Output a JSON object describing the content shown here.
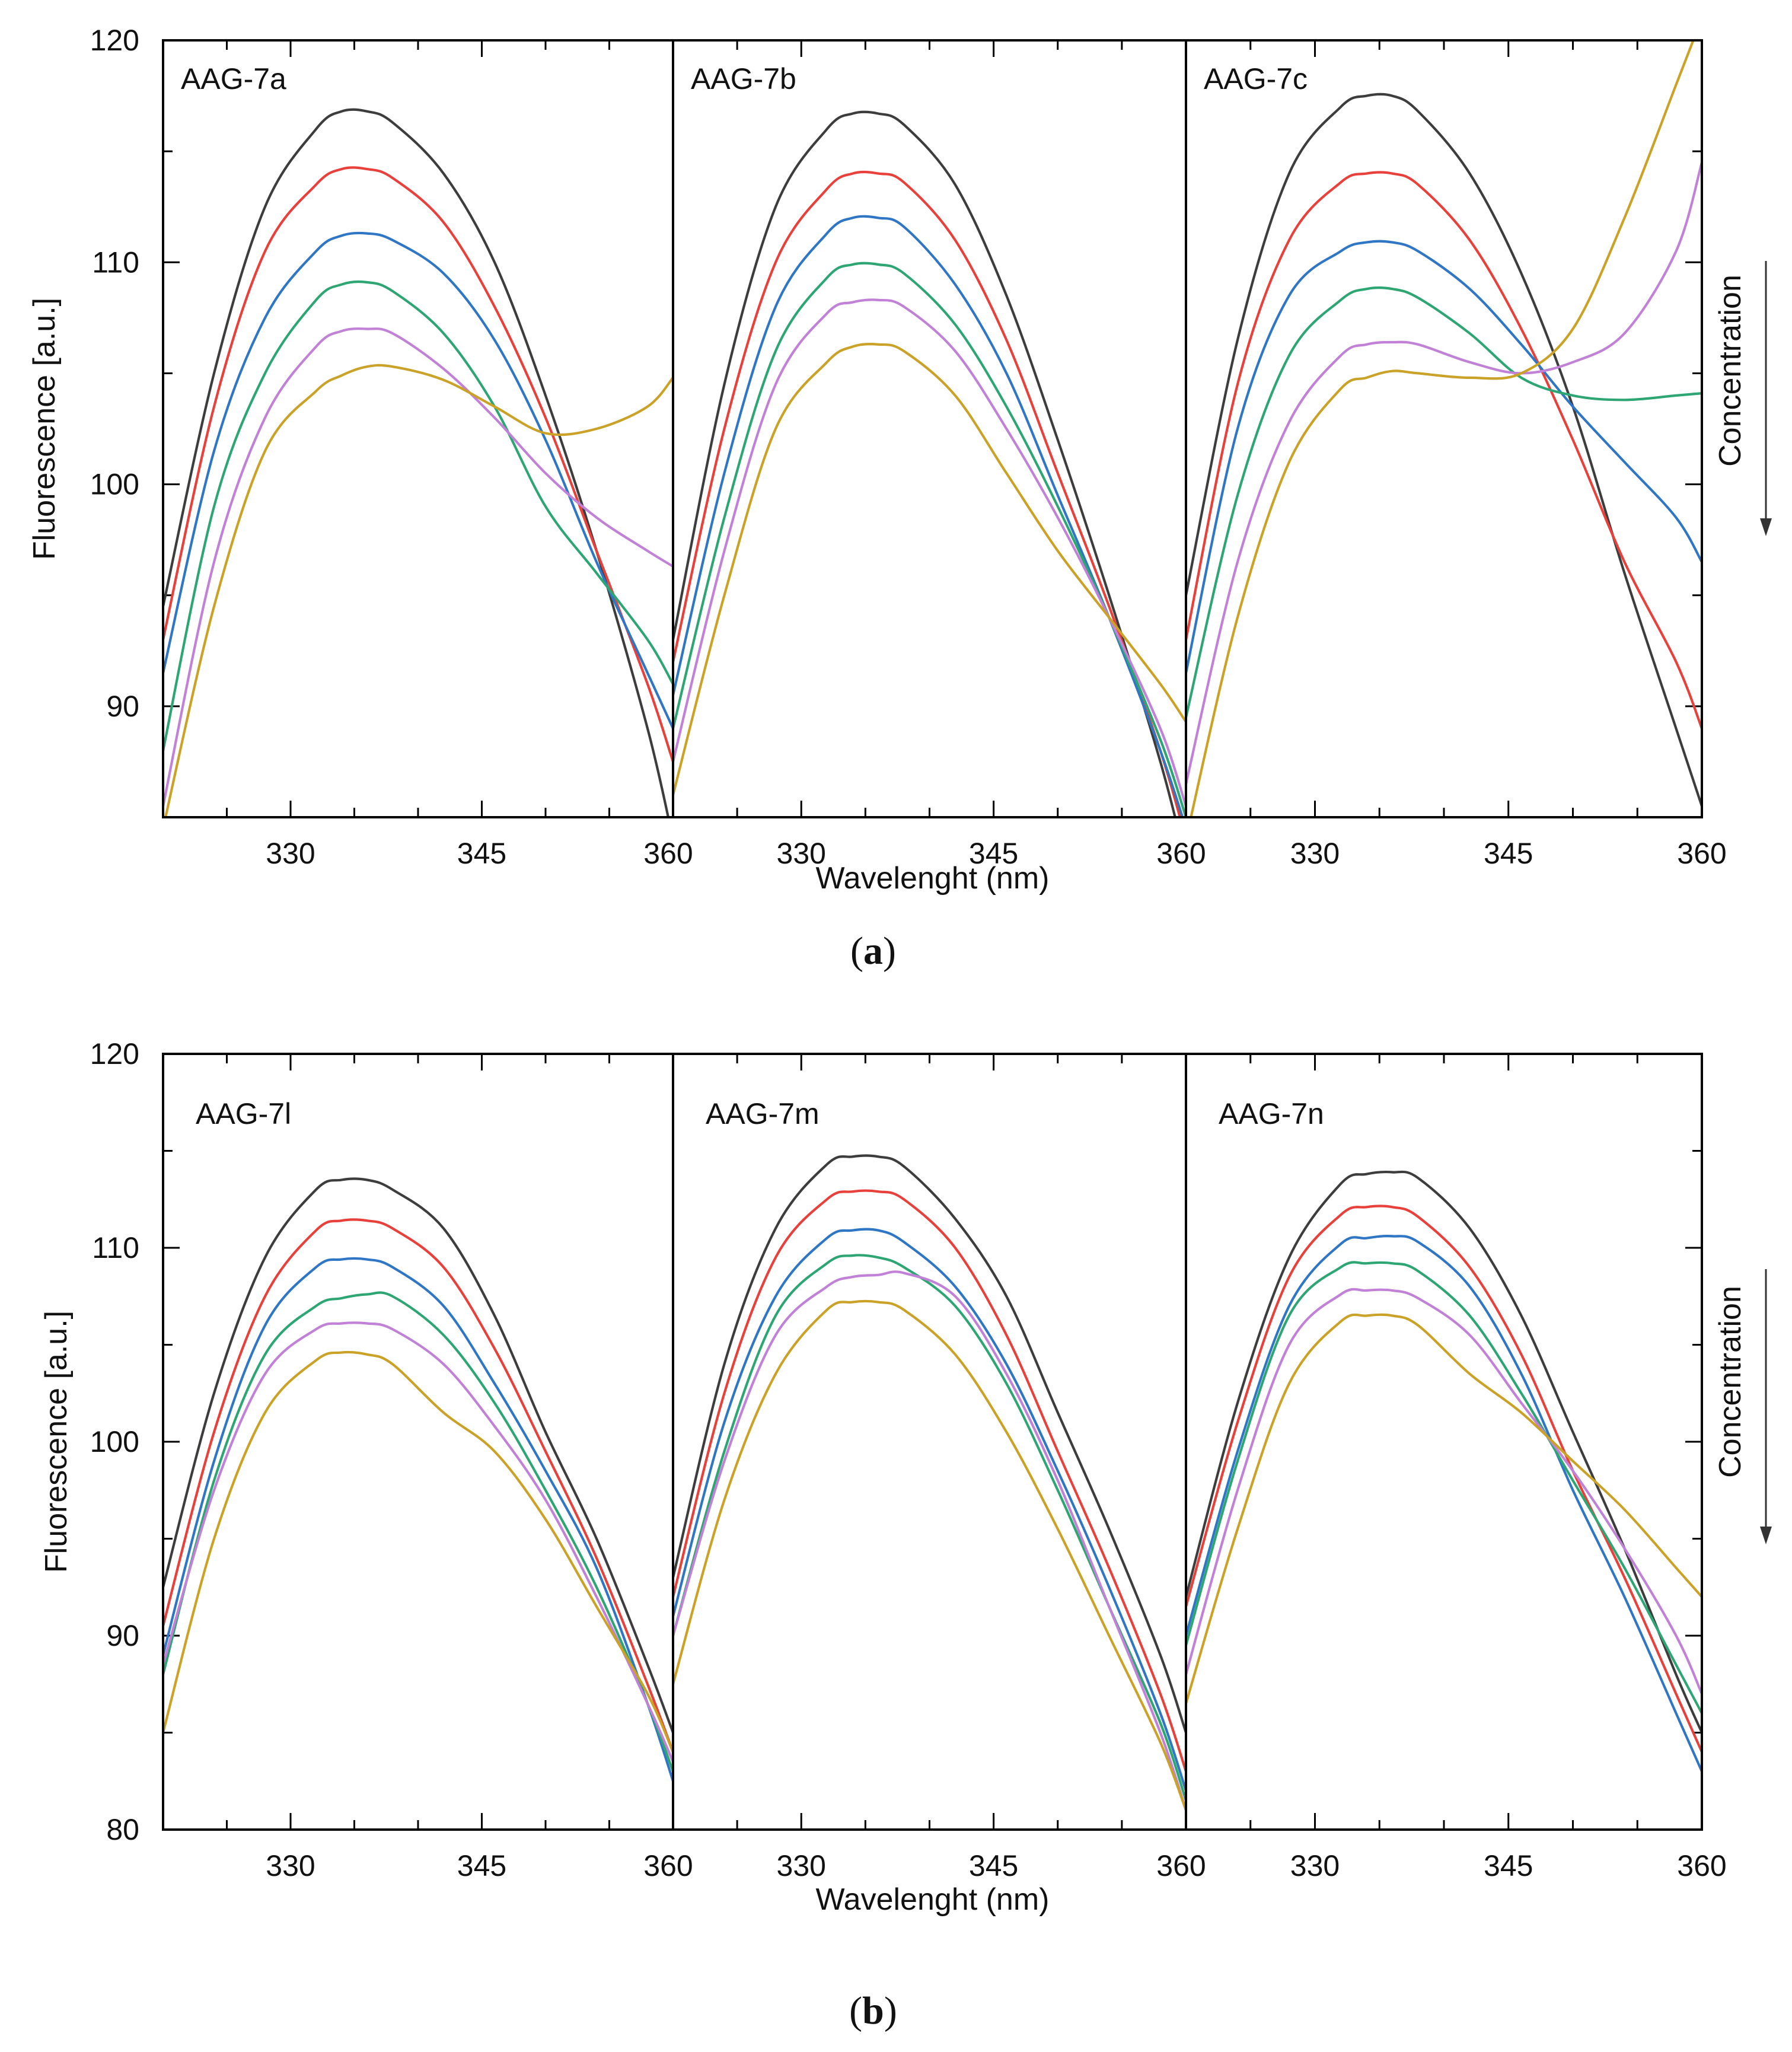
{
  "chart_data": [
    {
      "type": "line",
      "figure_label": "a",
      "ylabel": "Fluorescence [a.u.]",
      "xlabel": "Wavelenght (nm)",
      "ylim": [
        85,
        120
      ],
      "yticks": [
        90,
        100,
        110,
        120
      ],
      "arrow_label": "Concentration",
      "series_colors": [
        "#3d3d3d",
        "#e8413c",
        "#2f76c4",
        "#2ea673",
        "#c081d6",
        "#c9a227"
      ],
      "panels": [
        {
          "label": "AAG-7a",
          "xlim": [
            320,
            360
          ],
          "xticks": [
            330,
            345,
            360
          ],
          "x": [
            320,
            324,
            328,
            332,
            334,
            336,
            338,
            342,
            346,
            350,
            354,
            358,
            360
          ],
          "series": [
            {
              "values": [
                94.5,
                105.0,
                112.5,
                116.0,
                116.8,
                116.8,
                116.3,
                114.0,
                110.0,
                104.0,
                97.0,
                89.0,
                84.0
              ]
            },
            {
              "values": [
                93.0,
                103.5,
                110.5,
                113.5,
                114.2,
                114.2,
                113.8,
                111.8,
                108.0,
                103.0,
                97.0,
                91.0,
                87.5
              ]
            },
            {
              "values": [
                91.5,
                101.5,
                107.5,
                110.5,
                111.2,
                111.3,
                111.0,
                109.5,
                106.5,
                102.0,
                96.5,
                91.5,
                89.0
              ]
            },
            {
              "values": [
                88.0,
                99.0,
                105.0,
                108.3,
                109.0,
                109.1,
                108.7,
                106.8,
                103.5,
                99.0,
                96.0,
                93.0,
                91.0
              ]
            },
            {
              "values": [
                85.5,
                96.5,
                103.0,
                106.2,
                106.9,
                107.0,
                106.8,
                105.2,
                103.0,
                100.5,
                98.5,
                97.0,
                96.3
              ]
            },
            {
              "values": [
                84.5,
                94.5,
                101.5,
                104.2,
                104.9,
                105.3,
                105.3,
                104.7,
                103.5,
                102.3,
                102.5,
                103.5,
                104.8
              ]
            }
          ]
        },
        {
          "label": "AAG-7b",
          "xlim": [
            320,
            360
          ],
          "xticks": [
            330,
            345,
            360
          ],
          "x": [
            320,
            324,
            328,
            332,
            334,
            336,
            338,
            342,
            346,
            350,
            354,
            358,
            360
          ],
          "series": [
            {
              "values": [
                93.0,
                104.5,
                112.5,
                116.0,
                116.7,
                116.7,
                116.2,
                113.5,
                108.5,
                102.0,
                95.0,
                87.5,
                83.0
              ]
            },
            {
              "values": [
                92.0,
                102.5,
                110.0,
                113.3,
                114.0,
                114.0,
                113.6,
                111.0,
                106.5,
                100.5,
                94.5,
                88.0,
                84.0
              ]
            },
            {
              "values": [
                90.5,
                100.5,
                108.0,
                111.3,
                112.0,
                112.0,
                111.6,
                109.0,
                105.0,
                99.5,
                94.0,
                88.0,
                84.5
              ]
            },
            {
              "values": [
                89.0,
                98.5,
                106.0,
                109.3,
                109.9,
                109.9,
                109.5,
                107.2,
                103.5,
                99.0,
                94.0,
                88.5,
                85.0
              ]
            },
            {
              "values": [
                87.5,
                97.0,
                104.5,
                107.7,
                108.2,
                108.3,
                108.0,
                106.0,
                102.5,
                98.5,
                94.0,
                89.0,
                85.5
              ]
            },
            {
              "values": [
                86.0,
                95.0,
                102.5,
                105.5,
                106.2,
                106.3,
                106.0,
                104.0,
                100.5,
                97.0,
                94.0,
                91.0,
                89.3
              ]
            }
          ]
        },
        {
          "label": "AAG-7c",
          "xlim": [
            320,
            360
          ],
          "xticks": [
            330,
            345,
            360
          ],
          "x": [
            320,
            324,
            328,
            332,
            334,
            336,
            338,
            342,
            346,
            350,
            354,
            358,
            360
          ],
          "series": [
            {
              "values": [
                95.0,
                106.5,
                114.0,
                117.0,
                117.5,
                117.5,
                116.8,
                114.0,
                109.5,
                103.5,
                96.0,
                89.0,
                85.5
              ]
            },
            {
              "values": [
                93.0,
                104.5,
                111.0,
                113.6,
                114.0,
                114.0,
                113.5,
                111.0,
                107.0,
                102.0,
                96.5,
                92.0,
                89.0
              ]
            },
            {
              "values": [
                91.5,
                102.5,
                108.5,
                110.5,
                110.9,
                110.9,
                110.5,
                108.8,
                106.3,
                103.5,
                101.0,
                98.5,
                96.5
              ]
            },
            {
              "values": [
                89.5,
                99.5,
                105.8,
                108.3,
                108.8,
                108.8,
                108.4,
                106.8,
                104.8,
                104.0,
                103.8,
                104.0,
                104.1
              ]
            },
            {
              "values": [
                86.5,
                96.5,
                102.8,
                105.8,
                106.3,
                106.4,
                106.3,
                105.5,
                105.0,
                105.5,
                106.8,
                110.5,
                114.5
              ]
            },
            {
              "values": [
                84.0,
                94.0,
                101.0,
                104.3,
                104.8,
                105.1,
                105.0,
                104.8,
                105.0,
                107.0,
                112.0,
                118.0,
                121.0
              ]
            }
          ]
        }
      ]
    },
    {
      "type": "line",
      "figure_label": "b",
      "ylabel": "Fluorescence [a.u.]",
      "xlabel": "Wavelenght (nm)",
      "ylim": [
        80,
        120
      ],
      "yticks": [
        80,
        90,
        100,
        110,
        120
      ],
      "arrow_label": "Concentration",
      "series_colors": [
        "#3d3d3d",
        "#e8413c",
        "#2f76c4",
        "#2ea673",
        "#c081d6",
        "#c9a227"
      ],
      "panels": [
        {
          "label": "AAG-7l",
          "xlim": [
            320,
            360
          ],
          "xticks": [
            330,
            345,
            360
          ],
          "x": [
            320,
            324,
            328,
            332,
            334,
            336,
            338,
            342,
            346,
            350,
            354,
            358,
            360
          ],
          "series": [
            {
              "values": [
                92.5,
                102.5,
                109.5,
                113.0,
                113.5,
                113.5,
                113.0,
                111.0,
                106.5,
                100.5,
                95.0,
                88.5,
                85.0
              ]
            },
            {
              "values": [
                90.5,
                100.5,
                107.5,
                110.9,
                111.4,
                111.4,
                111.0,
                109.0,
                104.8,
                99.5,
                94.0,
                87.5,
                84.0
              ]
            },
            {
              "values": [
                89.0,
                99.0,
                106.0,
                109.0,
                109.4,
                109.4,
                109.0,
                107.0,
                103.0,
                98.5,
                93.5,
                86.5,
                82.5
              ]
            },
            {
              "values": [
                88.0,
                98.0,
                104.5,
                107.0,
                107.4,
                107.6,
                107.5,
                105.5,
                102.0,
                97.5,
                92.5,
                86.5,
                83.0
              ]
            },
            {
              "values": [
                88.5,
                97.5,
                103.5,
                105.8,
                106.1,
                106.1,
                105.8,
                104.0,
                100.8,
                97.0,
                92.0,
                86.5,
                83.5
              ]
            },
            {
              "values": [
                85.0,
                95.0,
                101.5,
                104.2,
                104.6,
                104.5,
                104.0,
                101.5,
                99.5,
                96.0,
                91.5,
                87.0,
                84.0
              ]
            }
          ]
        },
        {
          "label": "AAG-7m",
          "xlim": [
            320,
            360
          ],
          "xticks": [
            330,
            345,
            360
          ],
          "x": [
            320,
            324,
            328,
            332,
            334,
            336,
            338,
            342,
            346,
            350,
            354,
            358,
            360
          ],
          "series": [
            {
              "values": [
                93.0,
                104.0,
                111.0,
                114.3,
                114.7,
                114.7,
                114.2,
                111.5,
                107.5,
                101.5,
                95.5,
                89.0,
                85.0
              ]
            },
            {
              "values": [
                92.0,
                102.5,
                109.5,
                112.5,
                112.9,
                112.9,
                112.5,
                110.0,
                105.5,
                99.5,
                93.5,
                87.0,
                83.0
              ]
            },
            {
              "values": [
                91.0,
                101.0,
                107.5,
                110.5,
                110.9,
                110.9,
                110.3,
                108.0,
                104.0,
                98.5,
                92.5,
                86.0,
                82.0
              ]
            },
            {
              "values": [
                90.0,
                99.5,
                106.5,
                109.2,
                109.6,
                109.5,
                109.0,
                107.0,
                103.0,
                97.5,
                91.5,
                85.5,
                81.5
              ]
            },
            {
              "values": [
                90.0,
                99.0,
                105.5,
                108.0,
                108.5,
                108.6,
                108.7,
                107.5,
                103.5,
                98.0,
                91.5,
                85.0,
                81.0
              ]
            },
            {
              "values": [
                87.5,
                97.0,
                103.5,
                106.8,
                107.2,
                107.2,
                106.8,
                104.5,
                100.5,
                95.5,
                90.0,
                84.5,
                81.0
              ]
            }
          ]
        },
        {
          "label": "AAG-7n",
          "xlim": [
            320,
            360
          ],
          "xticks": [
            330,
            345,
            360
          ],
          "x": [
            320,
            324,
            328,
            332,
            334,
            336,
            338,
            342,
            346,
            350,
            354,
            358,
            360
          ],
          "series": [
            {
              "values": [
                92.0,
                102.0,
                109.5,
                113.3,
                113.8,
                113.9,
                113.6,
                111.0,
                106.5,
                100.5,
                94.5,
                88.0,
                85.0
              ]
            },
            {
              "values": [
                91.5,
                101.0,
                108.5,
                111.7,
                112.1,
                112.1,
                111.6,
                109.0,
                104.5,
                98.5,
                93.0,
                87.0,
                84.0
              ]
            },
            {
              "values": [
                90.0,
                99.5,
                107.0,
                110.2,
                110.5,
                110.6,
                110.3,
                108.0,
                103.5,
                97.5,
                92.0,
                86.0,
                83.0
              ]
            },
            {
              "values": [
                89.5,
                99.0,
                106.5,
                109.0,
                109.2,
                109.2,
                108.8,
                106.5,
                102.5,
                98.0,
                93.5,
                88.5,
                86.0
              ]
            },
            {
              "values": [
                88.0,
                97.5,
                105.0,
                107.6,
                107.8,
                107.8,
                107.4,
                105.5,
                102.0,
                98.5,
                94.5,
                90.0,
                87.0
              ]
            },
            {
              "values": [
                86.5,
                95.5,
                103.0,
                106.2,
                106.5,
                106.5,
                106.0,
                103.5,
                101.5,
                99.0,
                96.5,
                93.5,
                92.0
              ]
            }
          ]
        }
      ]
    }
  ]
}
